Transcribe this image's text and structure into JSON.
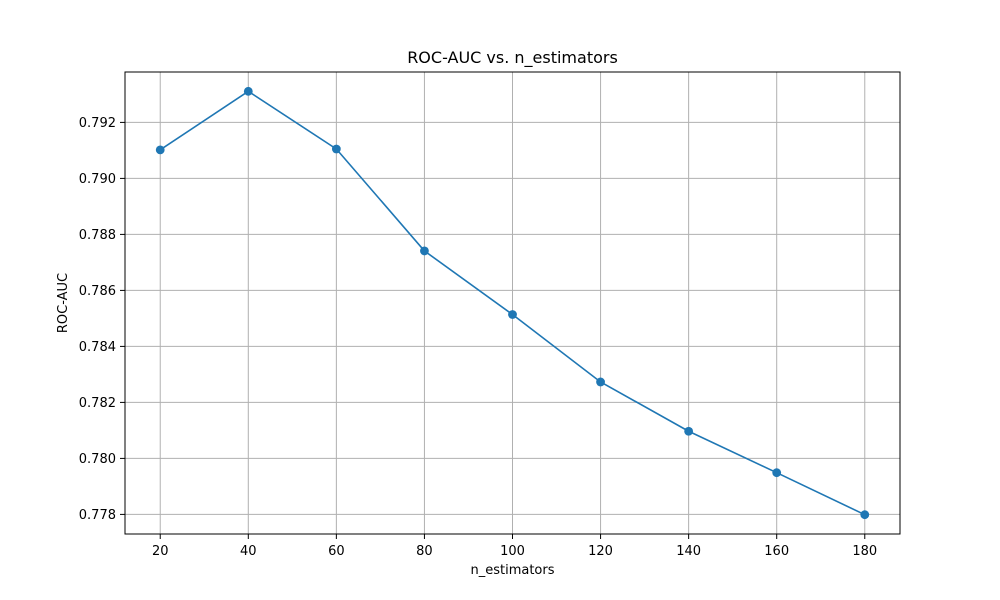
{
  "chart_data": {
    "type": "line",
    "title": "ROC-AUC vs. n_estimators",
    "xlabel": "n_estimators",
    "ylabel": "ROC-AUC",
    "x": [
      20,
      40,
      60,
      80,
      100,
      120,
      140,
      160,
      180
    ],
    "series": [
      {
        "values": [
          0.79102,
          0.79311,
          0.79105,
          0.78741,
          0.78514,
          0.78273,
          0.78097,
          0.77949,
          0.77799
        ],
        "color": "#1f77b4",
        "marker": "circle"
      }
    ],
    "x_ticks": [
      20,
      40,
      60,
      80,
      100,
      120,
      140,
      160,
      180
    ],
    "x_tick_labels": [
      "20",
      "40",
      "60",
      "80",
      "100",
      "120",
      "140",
      "160",
      "180"
    ],
    "y_ticks": [
      0.778,
      0.78,
      0.782,
      0.784,
      0.786,
      0.788,
      0.79,
      0.792
    ],
    "y_tick_labels": [
      "0.778",
      "0.780",
      "0.782",
      "0.784",
      "0.786",
      "0.788",
      "0.790",
      "0.792"
    ],
    "xlim": [
      12,
      188
    ],
    "ylim": [
      0.7773,
      0.7938
    ],
    "grid": true,
    "grid_color": "#b0b0b0",
    "legend": "none"
  }
}
